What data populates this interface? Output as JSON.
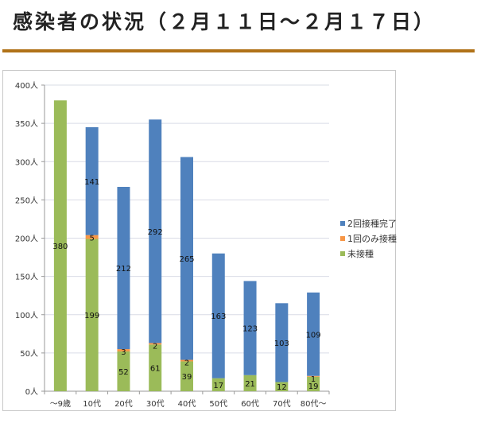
{
  "page": {
    "title": "感染者の状況（２月１１日～２月１７日）"
  },
  "colors": {
    "rule": "#b07218",
    "two_doses": "#4f81bd",
    "one_dose": "#f79646",
    "unvaccinated": "#9bbb59",
    "grid": "#d9dce6"
  },
  "chart_data": {
    "type": "bar",
    "stacked": true,
    "title": "",
    "xlabel": "",
    "ylabel": "",
    "ylim": [
      0,
      400
    ],
    "yticks": [
      0,
      50,
      100,
      150,
      200,
      250,
      300,
      350,
      400
    ],
    "ytick_labels": [
      "0人",
      "50人",
      "100人",
      "150人",
      "200人",
      "250人",
      "300人",
      "350人",
      "400人"
    ],
    "grid": true,
    "legend_position": "right",
    "categories": [
      "～9歳",
      "10代",
      "20代",
      "30代",
      "40代",
      "50代",
      "60代",
      "70代",
      "80代～"
    ],
    "series": [
      {
        "name": "未接種",
        "color_key": "unvaccinated",
        "values": [
          380,
          199,
          52,
          61,
          39,
          17,
          21,
          12,
          19
        ]
      },
      {
        "name": "1回のみ接種",
        "color_key": "one_dose",
        "values": [
          0,
          5,
          3,
          2,
          2,
          0,
          0,
          0,
          1
        ]
      },
      {
        "name": "2回接種完了",
        "color_key": "two_doses",
        "values": [
          0,
          141,
          212,
          292,
          265,
          163,
          123,
          103,
          109
        ]
      }
    ],
    "legend_order": [
      "2回接種完了",
      "1回のみ接種",
      "未接種"
    ]
  }
}
